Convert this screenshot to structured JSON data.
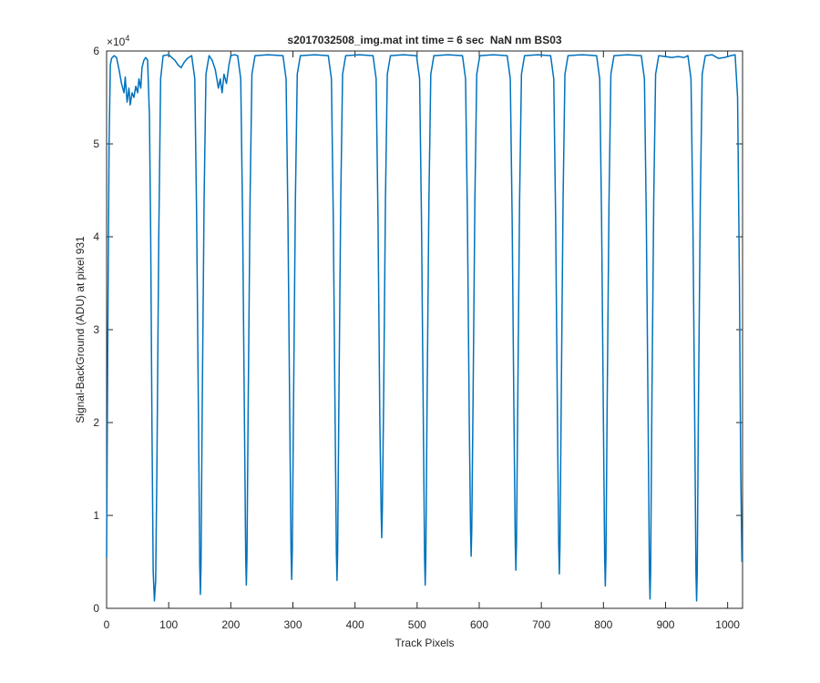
{
  "chart_data": {
    "type": "line",
    "title": "s2017032508_img.mat int time = 6 sec  NaN nm BS03",
    "x_label": "Track Pixels",
    "y_label": "Signal-BackGround (ADU) at pixel 931",
    "y_multiplier_base": "×10",
    "y_multiplier_exponent": 4,
    "color": "#0072bd",
    "xlim": [
      0,
      1024
    ],
    "xticks": [
      0,
      100,
      200,
      300,
      400,
      500,
      600,
      700,
      800,
      900,
      1000
    ],
    "ylim": [
      0,
      6
    ],
    "yticks": [
      0,
      1,
      2,
      3,
      4,
      5,
      6
    ],
    "grid": false,
    "x": [
      0,
      2,
      4,
      6,
      8,
      12,
      16,
      20,
      24,
      28,
      30,
      33,
      36,
      38,
      41,
      44,
      47,
      50,
      52,
      55,
      57,
      60,
      63,
      66,
      68,
      69,
      71,
      73,
      75,
      77,
      79,
      81,
      84,
      87,
      91,
      100,
      105,
      110,
      115,
      120,
      125,
      130,
      137,
      142,
      145,
      148,
      150,
      151,
      152,
      154,
      157,
      160,
      165,
      170,
      175,
      180,
      183,
      186,
      189,
      193,
      197,
      200,
      206,
      211,
      216,
      219,
      222,
      224,
      225,
      226,
      228,
      231,
      234,
      239,
      260,
      284,
      289,
      292,
      295,
      297,
      298,
      299,
      301,
      304,
      307,
      312,
      335,
      357,
      362,
      365,
      368,
      370,
      371,
      372,
      374,
      377,
      380,
      385,
      407,
      429,
      434,
      437,
      440,
      442,
      443,
      444,
      446,
      449,
      452,
      457,
      478,
      499,
      504,
      507,
      510,
      512,
      513,
      514,
      516,
      519,
      522,
      527,
      550,
      573,
      578,
      581,
      584,
      586,
      587,
      588,
      590,
      593,
      596,
      601,
      623,
      645,
      650,
      653,
      656,
      658,
      659,
      660,
      662,
      665,
      668,
      673,
      694,
      715,
      720,
      723,
      726,
      728,
      729,
      730,
      732,
      735,
      738,
      743,
      766,
      789,
      794,
      797,
      800,
      802,
      803,
      804,
      806,
      809,
      812,
      817,
      839,
      861,
      866,
      869,
      872,
      874,
      875,
      876,
      878,
      881,
      884,
      889,
      900,
      910,
      920,
      930,
      936,
      941,
      944,
      947,
      949,
      950,
      951,
      953,
      956,
      959,
      964,
      975,
      985,
      995,
      1005,
      1012,
      1016,
      1019,
      1021,
      1023
    ],
    "values": [
      0.55,
      3.0,
      5.0,
      5.85,
      5.92,
      5.95,
      5.93,
      5.8,
      5.65,
      5.55,
      5.72,
      5.45,
      5.6,
      5.42,
      5.55,
      5.5,
      5.62,
      5.55,
      5.7,
      5.6,
      5.82,
      5.9,
      5.93,
      5.9,
      5.5,
      5.3,
      4.0,
      2.0,
      0.4,
      0.08,
      0.3,
      1.5,
      4.0,
      5.7,
      5.95,
      5.96,
      5.93,
      5.9,
      5.85,
      5.82,
      5.88,
      5.92,
      5.95,
      5.7,
      4.2,
      2.0,
      0.45,
      0.15,
      0.45,
      2.2,
      4.4,
      5.75,
      5.95,
      5.9,
      5.8,
      5.6,
      5.7,
      5.55,
      5.75,
      5.65,
      5.85,
      5.95,
      5.96,
      5.95,
      5.7,
      4.2,
      2.0,
      0.55,
      0.25,
      0.55,
      2.2,
      4.4,
      5.75,
      5.95,
      5.96,
      5.95,
      5.7,
      4.2,
      2.0,
      0.61,
      0.31,
      0.61,
      2.2,
      4.4,
      5.75,
      5.95,
      5.96,
      5.95,
      5.7,
      4.2,
      2.0,
      0.6,
      0.3,
      0.6,
      2.2,
      4.4,
      5.75,
      5.95,
      5.96,
      5.95,
      5.7,
      4.2,
      2.0,
      1.06,
      0.76,
      1.06,
      2.2,
      4.4,
      5.75,
      5.95,
      5.96,
      5.95,
      5.7,
      4.2,
      2.0,
      0.55,
      0.25,
      0.55,
      2.2,
      4.4,
      5.75,
      5.95,
      5.96,
      5.95,
      5.7,
      4.2,
      2.0,
      0.86,
      0.56,
      0.86,
      2.2,
      4.4,
      5.75,
      5.95,
      5.96,
      5.95,
      5.7,
      4.2,
      2.0,
      0.71,
      0.41,
      0.71,
      2.2,
      4.4,
      5.75,
      5.95,
      5.96,
      5.95,
      5.7,
      4.2,
      2.0,
      0.67,
      0.37,
      0.67,
      2.2,
      4.4,
      5.75,
      5.95,
      5.96,
      5.95,
      5.7,
      4.2,
      2.0,
      0.54,
      0.24,
      0.54,
      2.2,
      4.4,
      5.75,
      5.95,
      5.96,
      5.95,
      5.7,
      4.2,
      2.0,
      0.4,
      0.1,
      0.4,
      2.2,
      4.4,
      5.75,
      5.95,
      5.94,
      5.93,
      5.94,
      5.93,
      5.95,
      5.7,
      4.2,
      2.0,
      0.38,
      0.08,
      0.38,
      2.2,
      4.4,
      5.75,
      5.95,
      5.96,
      5.92,
      5.93,
      5.95,
      5.96,
      5.5,
      3.5,
      1.5,
      0.5
    ]
  }
}
